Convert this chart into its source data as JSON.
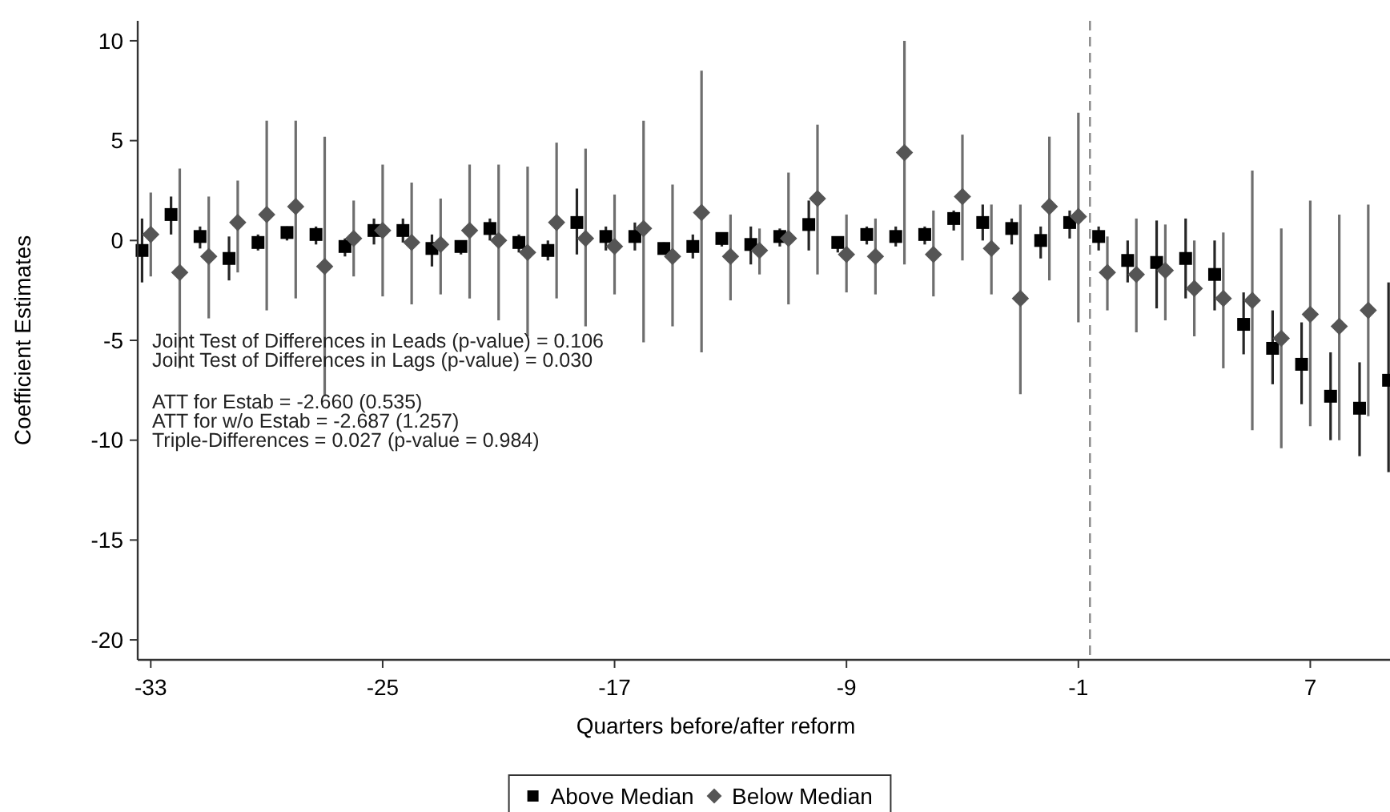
{
  "chart_data": {
    "type": "scatter",
    "xlabel": "Quarters before/after reform",
    "ylabel": "Coefficient Estimates",
    "xlim": [
      -33.45,
      9.75
    ],
    "xticks": [
      -33,
      -25,
      -17,
      -9,
      -1,
      7
    ],
    "ylim": [
      -21,
      11
    ],
    "yticks": [
      -20,
      -15,
      -10,
      -5,
      0,
      5,
      10
    ],
    "grid": false,
    "legend": "bottom",
    "annotations": [
      "Joint Test of Differences in Leads (p-value) = 0.106",
      "Joint Test of Differences in Lags (p-value) = 0.030",
      "ATT for Estab = -2.660 (0.535)",
      "ATT for w/o Estab = -2.687 (1.257)",
      "Triple-Differences = 0.027 (p-value = 0.984)"
    ],
    "ref_lines": [
      {
        "axis": "x",
        "value": -0.6,
        "color": "#888888",
        "line_style": "dashed"
      }
    ],
    "series": [
      {
        "name": "Above Median",
        "color": "#000000",
        "marker": "square",
        "x": [
          -33.3,
          -32.3,
          -31.3,
          -30.3,
          -29.3,
          -28.3,
          -27.3,
          -26.3,
          -25.3,
          -24.3,
          -23.3,
          -22.3,
          -21.3,
          -20.3,
          -19.3,
          -18.3,
          -17.3,
          -16.3,
          -15.3,
          -14.3,
          -13.3,
          -12.3,
          -11.3,
          -10.3,
          -9.3,
          -8.3,
          -7.3,
          -6.3,
          -5.3,
          -4.3,
          -3.3,
          -2.3,
          -1.3,
          -0.3,
          0.7,
          1.7,
          2.7,
          3.7,
          4.7,
          5.7,
          6.7,
          7.7,
          8.7,
          9.7
        ],
        "values": [
          -0.5,
          1.3,
          0.2,
          -0.9,
          -0.1,
          0.4,
          0.3,
          -0.3,
          0.5,
          0.5,
          -0.4,
          -0.3,
          0.6,
          -0.1,
          -0.5,
          0.9,
          0.2,
          0.2,
          -0.4,
          -0.3,
          0.1,
          -0.2,
          0.2,
          0.8,
          -0.1,
          0.3,
          0.2,
          0.3,
          1.1,
          0.9,
          0.6,
          0,
          0.9,
          0.2,
          -1,
          -1.1,
          -0.9,
          -1.7,
          -4.2,
          -5.4,
          -6.2,
          -7.8,
          -8.4,
          -7
        ],
        "errors": [
          [
            -2.1,
            1.1
          ],
          [
            0.3,
            2.2
          ],
          [
            -0.4,
            0.7
          ],
          [
            -2,
            0.2
          ],
          [
            -0.5,
            0.3
          ],
          [
            0,
            0.7
          ],
          [
            -0.2,
            0.7
          ],
          [
            -0.8,
            0.1
          ],
          [
            -0.2,
            1.1
          ],
          [
            -0.1,
            1.1
          ],
          [
            -1.3,
            0.3
          ],
          [
            -0.7,
            0
          ],
          [
            0,
            1.1
          ],
          [
            -0.6,
            0.3
          ],
          [
            -1,
            0
          ],
          [
            -0.7,
            2.6
          ],
          [
            -0.5,
            0.7
          ],
          [
            -0.5,
            0.9
          ],
          [
            -0.7,
            -0.1
          ],
          [
            -0.9,
            0.3
          ],
          [
            -0.3,
            0.4
          ],
          [
            -1.2,
            0.7
          ],
          [
            -0.3,
            0.6
          ],
          [
            -0.5,
            2
          ],
          [
            -0.6,
            0.2
          ],
          [
            -0.2,
            0.7
          ],
          [
            -0.3,
            0.7
          ],
          [
            -0.2,
            0.7
          ],
          [
            0.5,
            1.5
          ],
          [
            0,
            1.8
          ],
          [
            -0.2,
            1.1
          ],
          [
            -0.9,
            0.7
          ],
          [
            0.1,
            1.5
          ],
          [
            -0.5,
            0.7
          ],
          [
            -2.1,
            0
          ],
          [
            -3.4,
            1
          ],
          [
            -2.9,
            1.1
          ],
          [
            -3.5,
            0
          ],
          [
            -5.7,
            -2.6
          ],
          [
            -7.2,
            -3.5
          ],
          [
            -8.2,
            -4.1
          ],
          [
            -10,
            -5.6
          ],
          [
            -10.8,
            -6.1
          ],
          [
            -11.6,
            -2.1
          ]
        ]
      },
      {
        "name": "Below Median",
        "color": "#555555",
        "marker": "diamond",
        "x": [
          -33,
          -32,
          -31,
          -30,
          -29,
          -28,
          -27,
          -26,
          -25,
          -24,
          -23,
          -22,
          -21,
          -20,
          -19,
          -18,
          -17,
          -16,
          -15,
          -14,
          -13,
          -12,
          -11,
          -10,
          -9,
          -8,
          -7,
          -6,
          -5,
          -4,
          -3,
          -2,
          -1,
          0,
          1,
          2,
          3,
          4,
          5,
          6,
          7,
          8,
          9
        ],
        "values": [
          0.3,
          -1.6,
          -0.8,
          0.9,
          1.3,
          1.7,
          -1.3,
          0.1,
          0.5,
          -0.1,
          -0.2,
          0.5,
          0,
          -0.6,
          0.9,
          0.1,
          -0.3,
          0.6,
          -0.8,
          1.4,
          -0.8,
          -0.5,
          0.1,
          2.1,
          -0.7,
          -0.8,
          4.4,
          -0.7,
          2.2,
          -0.4,
          -2.9,
          1.7,
          1.2,
          -1.6,
          -1.7,
          -1.5,
          -2.4,
          -2.9,
          -3,
          -4.9,
          -3.7,
          -4.3,
          -3.5
        ],
        "errors": [
          [
            -1.8,
            2.4
          ],
          [
            -6.4,
            3.6
          ],
          [
            -3.9,
            2.2
          ],
          [
            -1.6,
            3
          ],
          [
            -3.5,
            6
          ],
          [
            -2.9,
            6
          ],
          [
            -7.8,
            5.2
          ],
          [
            -1.8,
            2
          ],
          [
            -2.8,
            3.8
          ],
          [
            -3.2,
            2.9
          ],
          [
            -2.7,
            2.1
          ],
          [
            -2.9,
            3.8
          ],
          [
            -4,
            3.8
          ],
          [
            -4.8,
            3.7
          ],
          [
            -2.9,
            4.9
          ],
          [
            -4.3,
            4.6
          ],
          [
            -2.7,
            2.3
          ],
          [
            -5.1,
            6
          ],
          [
            -4.3,
            2.8
          ],
          [
            -5.6,
            8.5
          ],
          [
            -3,
            1.3
          ],
          [
            -1.7,
            0.6
          ],
          [
            -3.2,
            3.4
          ],
          [
            -1.7,
            5.8
          ],
          [
            -2.6,
            1.3
          ],
          [
            -2.7,
            1.1
          ],
          [
            -1.2,
            10
          ],
          [
            -2.8,
            1.5
          ],
          [
            -1,
            5.3
          ],
          [
            -2.7,
            1.8
          ],
          [
            -7.7,
            1.8
          ],
          [
            -2,
            5.2
          ],
          [
            -4.1,
            6.4
          ],
          [
            -3.5,
            0.2
          ],
          [
            -4.6,
            1.1
          ],
          [
            -4,
            0.8
          ],
          [
            -4.8,
            0
          ],
          [
            -6.4,
            0.4
          ],
          [
            -9.5,
            3.5
          ],
          [
            -10.4,
            0.6
          ],
          [
            -9.3,
            2
          ],
          [
            -10,
            1.3
          ],
          [
            -8.8,
            1.8
          ]
        ]
      }
    ]
  }
}
